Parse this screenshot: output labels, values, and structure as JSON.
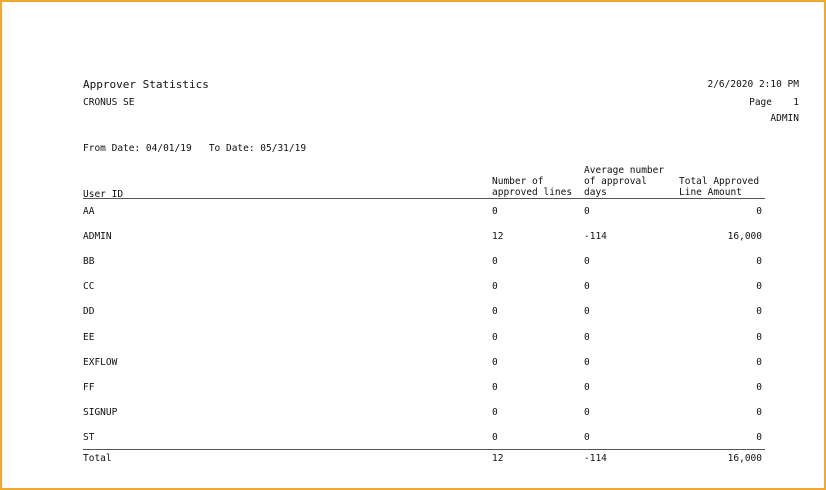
{
  "report": {
    "title": "Approver Statistics",
    "company": "CRONUS SE",
    "datetime": "2/6/2020 2:10 PM",
    "page_label": "Page",
    "page_number": "1",
    "user": "ADMIN",
    "filter": "From Date: 04/01/19   To Date: 05/31/19"
  },
  "table": {
    "headers": {
      "user_id": "User ID",
      "num_lines": "Number of\napproved lines",
      "avg_days": "Average number\nof approval\ndays",
      "total_amount": "Total Approved\nLine Amount"
    },
    "rows": [
      {
        "user": "AA",
        "lines": "0",
        "days": "0",
        "amount": "0"
      },
      {
        "user": "ADMIN",
        "lines": "12",
        "days": "-114",
        "amount": "16,000"
      },
      {
        "user": "BB",
        "lines": "0",
        "days": "0",
        "amount": "0"
      },
      {
        "user": "CC",
        "lines": "0",
        "days": "0",
        "amount": "0"
      },
      {
        "user": "DD",
        "lines": "0",
        "days": "0",
        "amount": "0"
      },
      {
        "user": "EE",
        "lines": "0",
        "days": "0",
        "amount": "0"
      },
      {
        "user": "EXFLOW",
        "lines": "0",
        "days": "0",
        "amount": "0"
      },
      {
        "user": "FF",
        "lines": "0",
        "days": "0",
        "amount": "0"
      },
      {
        "user": "SIGNUP",
        "lines": "0",
        "days": "0",
        "amount": "0"
      },
      {
        "user": "ST",
        "lines": "0",
        "days": "0",
        "amount": "0"
      }
    ],
    "total": {
      "label": "Total",
      "lines": "12",
      "days": "-114",
      "amount": "16,000"
    }
  }
}
